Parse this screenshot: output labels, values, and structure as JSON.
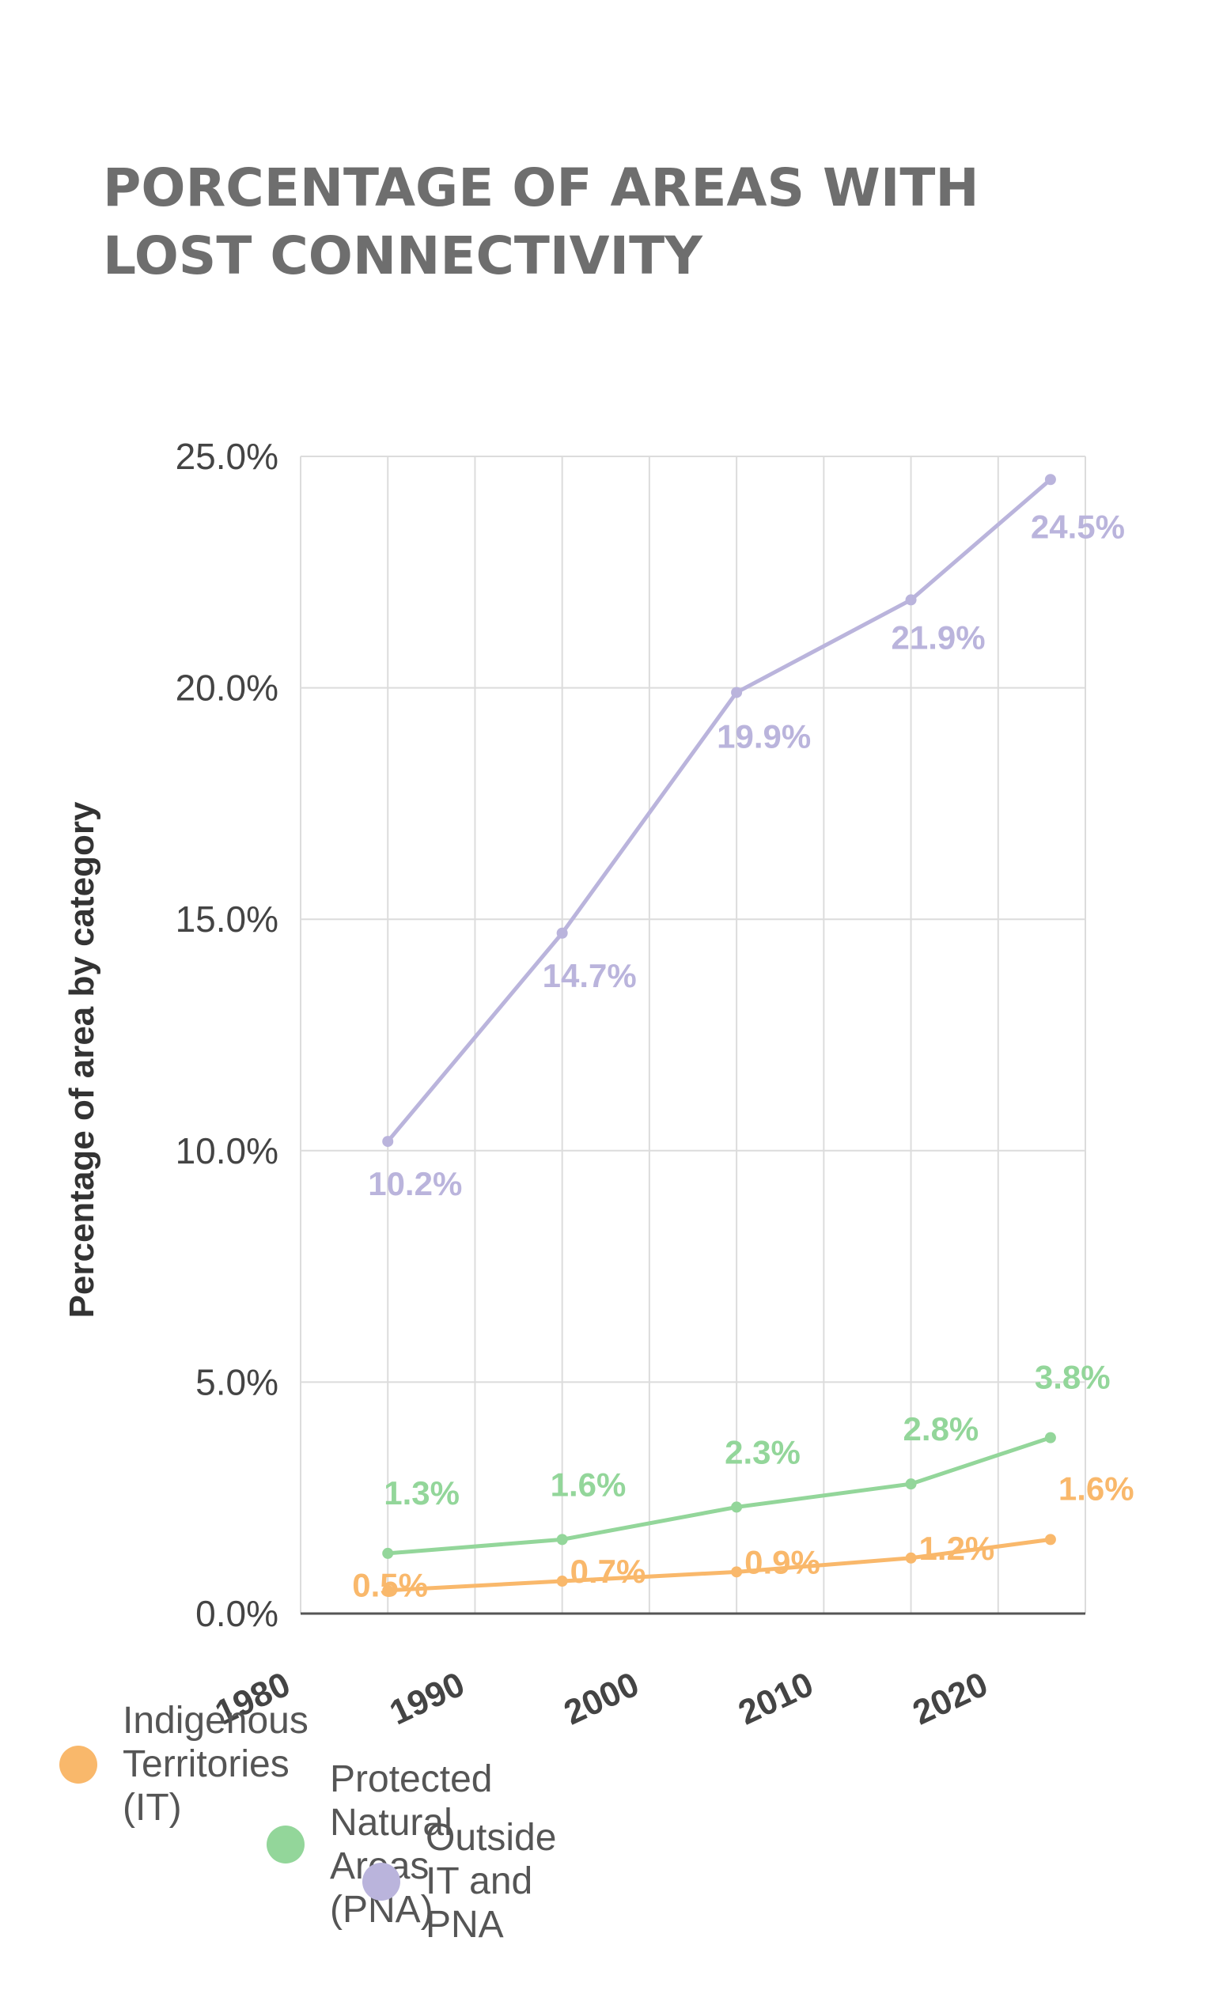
{
  "title_lines": [
    "PORCENTAGE OF AREAS WITH",
    "LOST CONNECTIVITY"
  ],
  "chart_data": {
    "type": "line",
    "title": "PORCENTAGE OF AREAS WITH LOST CONNECTIVITY",
    "ylabel": "Percentage of area by category",
    "xlabel": "",
    "x": [
      1985,
      1995,
      2005,
      2015,
      2023
    ],
    "xlim": [
      1980,
      2025
    ],
    "xticks": [
      "1980",
      "1990",
      "2000",
      "2010",
      "2020"
    ],
    "ylim": [
      0,
      25
    ],
    "yticks": [
      "0.0%",
      "5.0%",
      "10.0%",
      "15.0%",
      "20.0%",
      "25.0%"
    ],
    "grid": true,
    "legend_position": "bottom",
    "series": [
      {
        "name": "Indigenous Territories (IT)",
        "color": "#f9b86b",
        "values": [
          0.5,
          0.7,
          0.9,
          1.2,
          1.6
        ],
        "labels": [
          "0.5%",
          "0.7%",
          "0.9%",
          "1.2%",
          "1.6%"
        ]
      },
      {
        "name": "Protected Natural Areas (PNA)",
        "color": "#93d69a",
        "values": [
          1.3,
          1.6,
          2.3,
          2.8,
          3.8
        ],
        "labels": [
          "1.3%",
          "1.6%",
          "2.3%",
          "2.8%",
          "3.8%"
        ]
      },
      {
        "name": "Outside IT and PNA",
        "color": "#bab4dc",
        "values": [
          10.2,
          14.7,
          19.9,
          21.9,
          24.5
        ],
        "labels": [
          "10.2%",
          "14.7%",
          "19.9%",
          "21.9%",
          "24.5%"
        ]
      }
    ]
  }
}
